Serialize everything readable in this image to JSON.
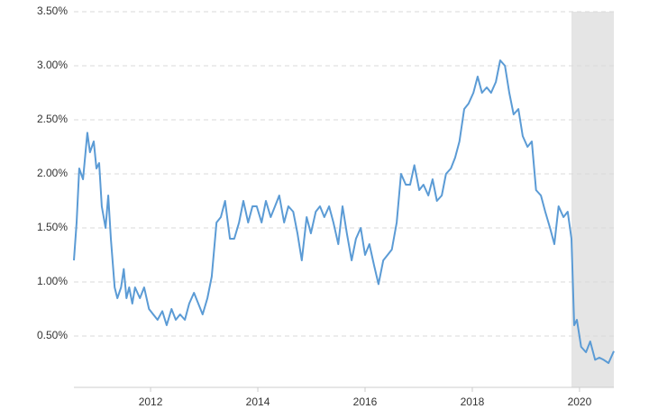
{
  "chart_data": {
    "type": "line",
    "x": [
      2010.57,
      2010.62,
      2010.67,
      2010.74,
      2010.82,
      2010.87,
      2010.94,
      2010.99,
      2011.04,
      2011.09,
      2011.16,
      2011.21,
      2011.26,
      2011.33,
      2011.38,
      2011.45,
      2011.5,
      2011.55,
      2011.6,
      2011.66,
      2011.71,
      2011.8,
      2011.88,
      2011.97,
      2012.05,
      2012.13,
      2012.22,
      2012.3,
      2012.39,
      2012.47,
      2012.55,
      2012.64,
      2012.72,
      2012.81,
      2012.89,
      2012.97,
      2013.06,
      2013.14,
      2013.23,
      2013.31,
      2013.39,
      2013.48,
      2013.56,
      2013.65,
      2013.73,
      2013.82,
      2013.9,
      2013.98,
      2014.07,
      2014.15,
      2014.24,
      2014.32,
      2014.4,
      2014.49,
      2014.57,
      2014.66,
      2014.74,
      2014.82,
      2014.91,
      2014.99,
      2015.08,
      2015.16,
      2015.24,
      2015.33,
      2015.41,
      2015.5,
      2015.58,
      2015.66,
      2015.75,
      2015.83,
      2015.92,
      2016.0,
      2016.08,
      2016.17,
      2016.25,
      2016.34,
      2016.42,
      2016.5,
      2016.59,
      2016.67,
      2016.76,
      2016.84,
      2016.92,
      2017.01,
      2017.09,
      2017.18,
      2017.26,
      2017.34,
      2017.43,
      2017.51,
      2017.6,
      2017.68,
      2017.76,
      2017.85,
      2017.93,
      2018.02,
      2018.1,
      2018.18,
      2018.27,
      2018.35,
      2018.44,
      2018.52,
      2018.61,
      2018.69,
      2018.77,
      2018.86,
      2018.94,
      2019.03,
      2019.11,
      2019.19,
      2019.28,
      2019.36,
      2019.45,
      2019.53,
      2019.61,
      2019.7,
      2019.78,
      2019.85,
      2019.9,
      2019.95,
      2020.03,
      2020.12,
      2020.2,
      2020.29,
      2020.37,
      2020.45,
      2020.54,
      2020.64
    ],
    "series": [
      {
        "color": "#5b9bd5",
        "values": [
          1.2,
          1.55,
          2.05,
          1.95,
          2.38,
          2.2,
          2.3,
          2.05,
          2.1,
          1.7,
          1.5,
          1.8,
          1.4,
          0.95,
          0.85,
          0.95,
          1.12,
          0.85,
          0.95,
          0.8,
          0.95,
          0.85,
          0.95,
          0.75,
          0.7,
          0.65,
          0.73,
          0.6,
          0.75,
          0.65,
          0.7,
          0.65,
          0.8,
          0.9,
          0.8,
          0.7,
          0.85,
          1.05,
          1.55,
          1.6,
          1.75,
          1.4,
          1.4,
          1.55,
          1.75,
          1.55,
          1.7,
          1.7,
          1.55,
          1.75,
          1.6,
          1.7,
          1.8,
          1.55,
          1.7,
          1.65,
          1.45,
          1.2,
          1.6,
          1.45,
          1.65,
          1.7,
          1.6,
          1.7,
          1.55,
          1.35,
          1.7,
          1.45,
          1.2,
          1.4,
          1.5,
          1.25,
          1.35,
          1.15,
          0.98,
          1.2,
          1.25,
          1.3,
          1.55,
          2.0,
          1.9,
          1.9,
          2.08,
          1.85,
          1.9,
          1.8,
          1.95,
          1.75,
          1.8,
          2.0,
          2.05,
          2.15,
          2.3,
          2.6,
          2.65,
          2.75,
          2.9,
          2.75,
          2.8,
          2.75,
          2.85,
          3.05,
          3.0,
          2.75,
          2.55,
          2.6,
          2.35,
          2.25,
          2.3,
          1.85,
          1.8,
          1.65,
          1.5,
          1.35,
          1.7,
          1.6,
          1.65,
          1.4,
          0.6,
          0.65,
          0.4,
          0.35,
          0.45,
          0.28,
          0.3,
          0.28,
          0.25,
          0.36
        ]
      }
    ],
    "shaded_region": [
      2019.85,
      2020.64
    ],
    "xlim": [
      2010.57,
      2020.64
    ],
    "xticks": [
      2012,
      2014,
      2016,
      2018,
      2020
    ],
    "ylim": [
      0,
      3.5
    ],
    "yticks": [
      {
        "value": 0.5,
        "label": "0.50%"
      },
      {
        "value": 1,
        "label": "1.00%"
      },
      {
        "value": 1.5,
        "label": "1.50%"
      },
      {
        "value": 2,
        "label": "2.00%"
      },
      {
        "value": 2.5,
        "label": "2.50%"
      },
      {
        "value": 3,
        "label": "3.00%"
      },
      {
        "value": 3.5,
        "label": "3.50%"
      }
    ],
    "grid": true
  }
}
